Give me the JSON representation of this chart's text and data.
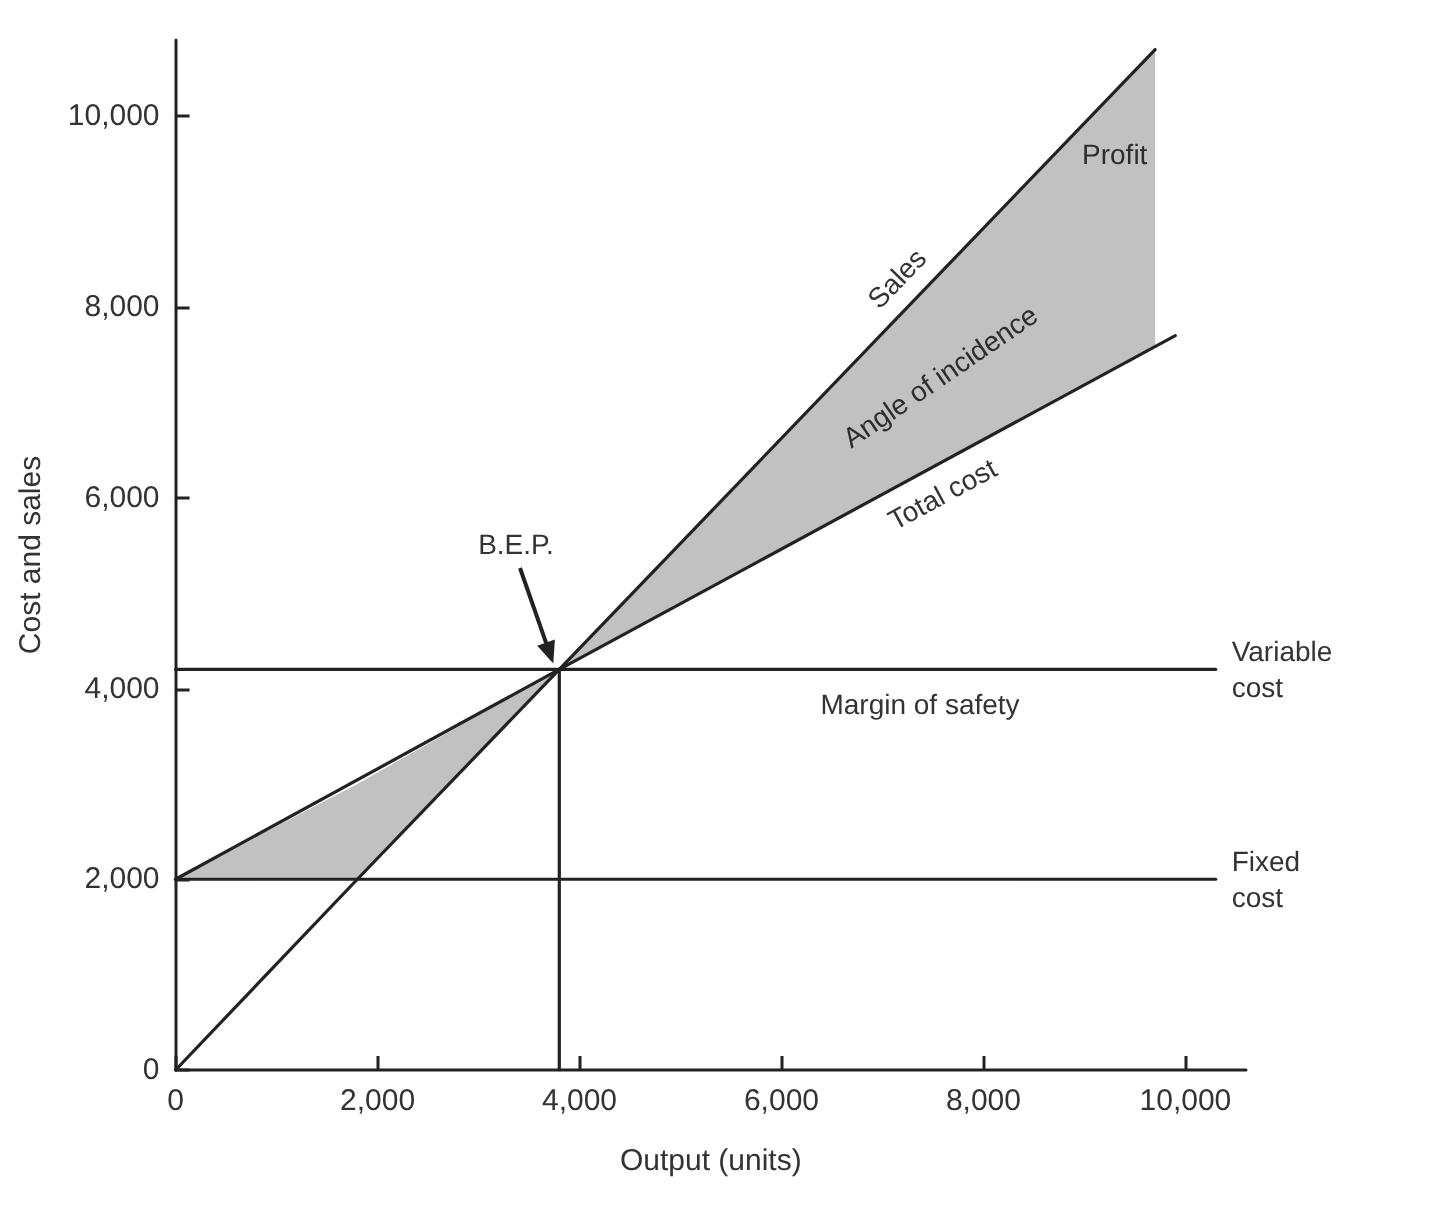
{
  "chart_data": {
    "type": "line",
    "xlabel": "Output (units)",
    "ylabel": "Cost and sales",
    "xlim": [
      0,
      10600
    ],
    "ylim": [
      0,
      10800
    ],
    "xticks": [
      0,
      {
        "value": 2000,
        "label": "2,000"
      },
      {
        "value": 4000,
        "label": "4,000"
      },
      {
        "value": 6000,
        "label": "6,000"
      },
      {
        "value": 8000,
        "label": "8,000"
      },
      {
        "value": 10000,
        "label": "10,000"
      }
    ],
    "yticks": [
      0,
      {
        "value": 2000,
        "label": "2,000"
      },
      {
        "value": 4000,
        "label": "4,000"
      },
      {
        "value": 6000,
        "label": "6,000"
      },
      {
        "value": 8000,
        "label": "8,000"
      },
      {
        "value": 10000,
        "label": "10,000"
      }
    ],
    "series": [
      {
        "name": "Sales",
        "color": "#222222",
        "x": [
          0,
          1800,
          3800,
          9700
        ],
        "values": [
          0,
          2000,
          4200,
          10700
        ],
        "lower": [
          2000,
          2000,
          4200,
          7600
        ],
        "upper": [
          2000,
          3000,
          4200,
          10700
        ]
      },
      {
        "name": "Total cost",
        "color": "#222222",
        "x": [
          0,
          3800,
          9900
        ],
        "values": [
          2000,
          4200,
          7700
        ]
      },
      {
        "name": "Variable cost",
        "color": "#222222",
        "x": [
          0,
          10300
        ],
        "values": [
          4200,
          4200
        ]
      },
      {
        "name": "Fixed cost",
        "color": "#222222",
        "x": [
          0,
          10300
        ],
        "values": [
          2000,
          2000
        ]
      },
      {
        "color": "#222222",
        "x": [
          3800,
          3800
        ],
        "values": [
          0,
          4200
        ]
      }
    ],
    "annotations": [
      "B.E.P.",
      {
        "text": "Profit",
        "x": 9300,
        "y": 9600
      },
      "Angle of incidence",
      "Margin of safety"
    ],
    "grid": false
  }
}
